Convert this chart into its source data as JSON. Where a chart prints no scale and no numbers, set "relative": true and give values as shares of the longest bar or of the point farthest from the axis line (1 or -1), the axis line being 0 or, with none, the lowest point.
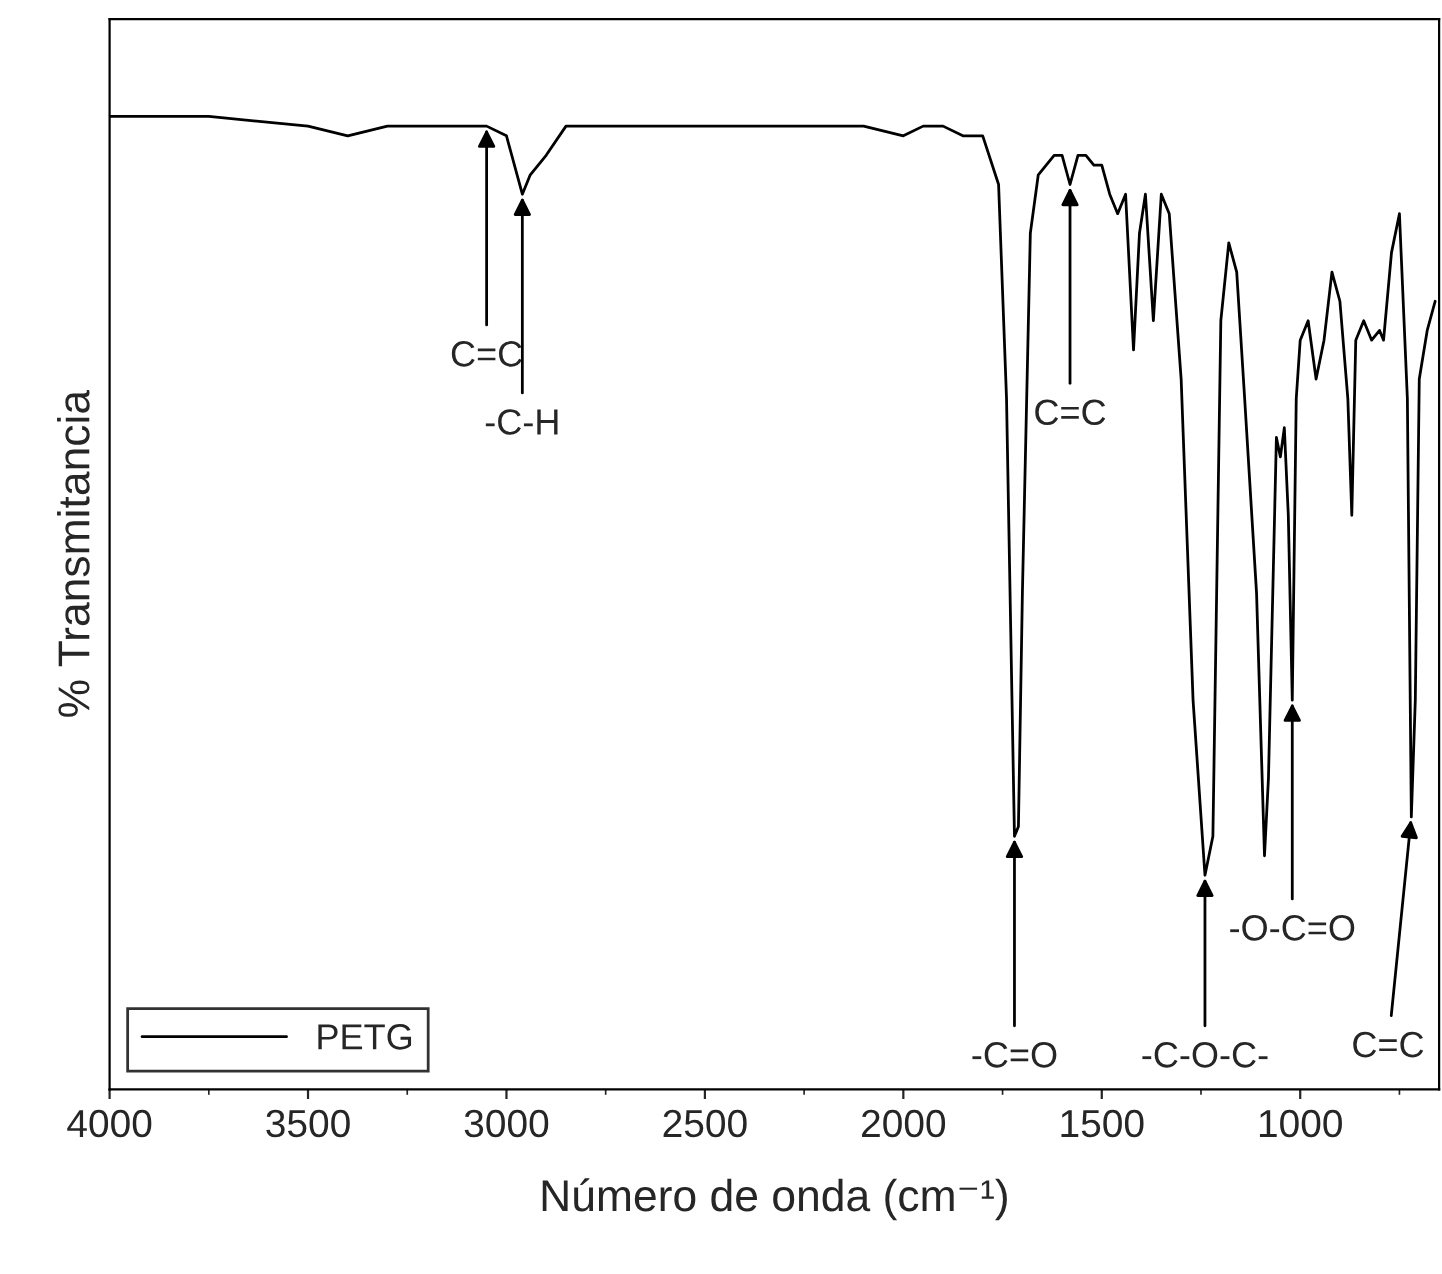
{
  "chart_data": {
    "type": "line",
    "relative": true,
    "xlabel": "Número de onda (cm⁻¹)",
    "ylabel": "% Transmitancia",
    "xlim": [
      4000,
      650
    ],
    "xticks": [
      4000,
      3500,
      3000,
      2500,
      2000,
      1500,
      1000
    ],
    "legend": "bottom left",
    "grid": false,
    "series": [
      {
        "name": "PETG",
        "color": "#000000",
        "x": [
          4000,
          3750,
          3500,
          3400,
          3300,
          3100,
          3050,
          3000,
          2960,
          2940,
          2900,
          2850,
          2700,
          2500,
          2300,
          2100,
          2000,
          1950,
          1900,
          1850,
          1800,
          1760,
          1740,
          1720,
          1710,
          1700,
          1680,
          1660,
          1640,
          1620,
          1600,
          1580,
          1560,
          1540,
          1520,
          1500,
          1480,
          1460,
          1440,
          1420,
          1405,
          1390,
          1370,
          1350,
          1330,
          1300,
          1270,
          1240,
          1220,
          1200,
          1180,
          1160,
          1140,
          1110,
          1090,
          1080,
          1060,
          1050,
          1040,
          1030,
          1020,
          1010,
          1000,
          980,
          960,
          940,
          920,
          900,
          880,
          870,
          860,
          840,
          820,
          800,
          790,
          770,
          750,
          730,
          720,
          710,
          700,
          680,
          660
        ],
        "values": [
          1.0,
          1.0,
          0.99,
          0.98,
          0.99,
          0.99,
          0.99,
          0.98,
          0.92,
          0.94,
          0.96,
          0.99,
          0.99,
          0.99,
          0.99,
          0.99,
          0.98,
          0.99,
          0.99,
          0.98,
          0.98,
          0.93,
          0.71,
          0.26,
          0.27,
          0.51,
          0.88,
          0.94,
          0.95,
          0.96,
          0.96,
          0.93,
          0.96,
          0.96,
          0.95,
          0.95,
          0.92,
          0.9,
          0.92,
          0.76,
          0.88,
          0.92,
          0.79,
          0.92,
          0.9,
          0.73,
          0.4,
          0.22,
          0.26,
          0.79,
          0.87,
          0.84,
          0.71,
          0.51,
          0.24,
          0.32,
          0.67,
          0.65,
          0.68,
          0.59,
          0.4,
          0.71,
          0.77,
          0.79,
          0.73,
          0.77,
          0.84,
          0.81,
          0.71,
          0.59,
          0.77,
          0.79,
          0.77,
          0.78,
          0.77,
          0.86,
          0.9,
          0.71,
          0.28,
          0.4,
          0.73,
          0.78,
          0.81
        ]
      }
    ],
    "annotations": [
      {
        "text": "C=C",
        "x": 3050,
        "y": 0.99
      },
      {
        "text": "-C-H",
        "x": 2960,
        "y": 0.92
      },
      {
        "text": "C=C",
        "x": 1580,
        "y": 0.93
      },
      {
        "text": "-C=O",
        "x": 1720,
        "y": 0.26
      },
      {
        "text": "-C-O-C-",
        "x": 1240,
        "y": 0.22
      },
      {
        "text": "-O-C=O",
        "x": 1020,
        "y": 0.4
      },
      {
        "text": "C=C",
        "x": 720,
        "y": 0.28
      }
    ]
  }
}
